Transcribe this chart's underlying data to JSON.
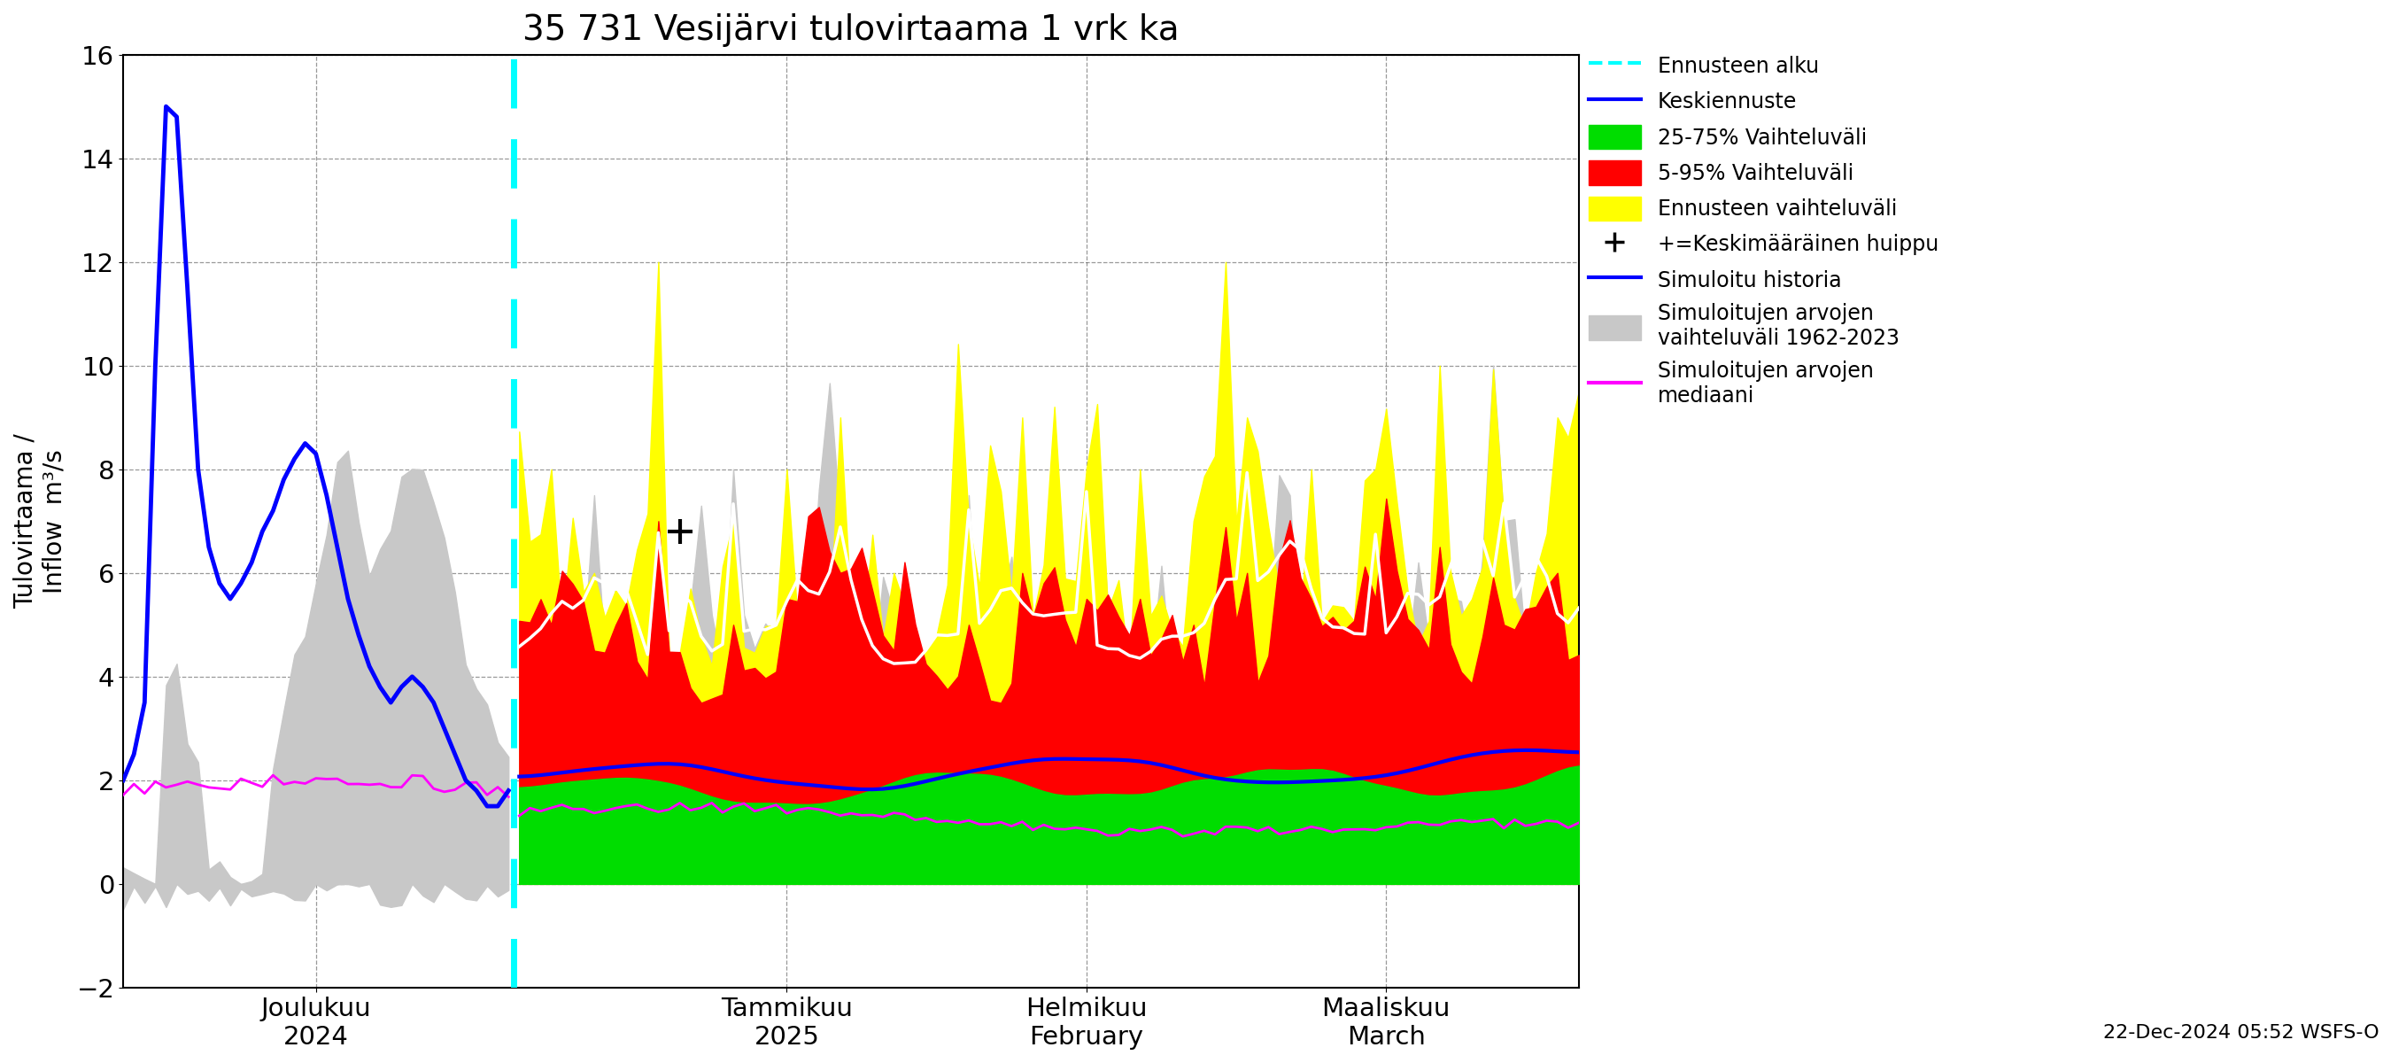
{
  "title": "35 731 Vesijärvi tulovirtaama 1 vrk ka",
  "ylabel_left": "Tulovirtaama /\nInflow  m³/s",
  "ylim": [
    -2,
    16
  ],
  "yticks": [
    -2,
    0,
    2,
    4,
    6,
    8,
    10,
    12,
    14,
    16
  ],
  "xlabel_joulukuu": "Joulukuu\n2024",
  "xlabel_tammikuu": "Tammikuu\n2025",
  "xlabel_helmikuu": "Helmikuu\nFebruary",
  "xlabel_maaliskuu": "Maaliskuu\nMarch",
  "footnote": "22-Dec-2024 05:52 WSFS-O",
  "colors": {
    "gray_band": "#c8c8c8",
    "yellow_band": "#ffff00",
    "red_band": "#ff0000",
    "green_band": "#00dd00",
    "blue_line": "#0000ff",
    "magenta_line": "#ff00ff",
    "white_line": "#ffffff",
    "cyan_dashed": "#00ffff",
    "background": "#ffffff"
  }
}
